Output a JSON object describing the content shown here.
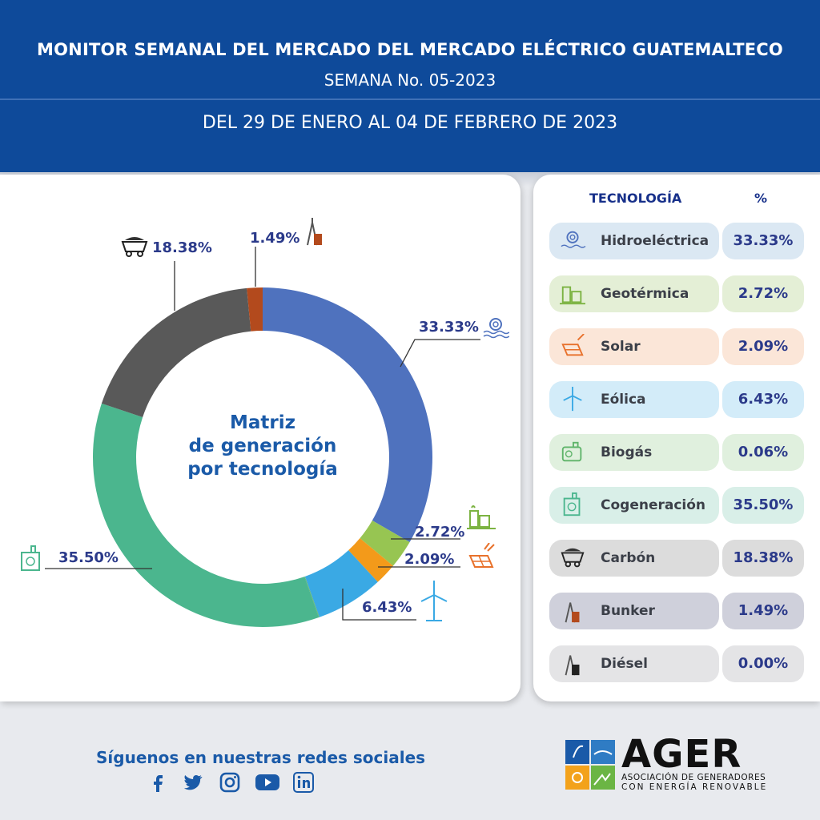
{
  "header": {
    "title": "MONITOR SEMANAL DEL MERCADO DEL MERCADO ELÉCTRICO GUATEMALTECO",
    "week": "SEMANA No. 05-2023",
    "date_range": "DEL 29 DE ENERO AL 04 DE FEBRERO DE 2023"
  },
  "chart_center_label": [
    "Matriz",
    "de generación",
    "por tecnología"
  ],
  "chart_data": {
    "type": "pie",
    "title": "Matriz de generación por tecnología",
    "categories": [
      "Hidroeléctrica",
      "Geotérmica",
      "Solar",
      "Eólica",
      "Biogás",
      "Cogeneración",
      "Carbón",
      "Bunker",
      "Diésel"
    ],
    "values": [
      33.33,
      2.72,
      2.09,
      6.43,
      0.06,
      35.5,
      18.38,
      1.49,
      0.0
    ],
    "value_labels": [
      "33.33%",
      "2.72%",
      "2.09%",
      "6.43%",
      "0.06%",
      "35.50%",
      "18.38%",
      "1.49%",
      "0.00%"
    ],
    "colors": [
      "#4f72be",
      "#97c552",
      "#f39a1a",
      "#3aa9e4",
      "#5fb46a",
      "#4bb68e",
      "#595959",
      "#b34a1d",
      "#808080"
    ],
    "donut": true
  },
  "table": {
    "header_tech": "TECNOLOGÍA",
    "header_pct": "%",
    "rows": [
      {
        "name": "Hidroeléctrica",
        "pct": "33.33%",
        "icon": "hydro-icon",
        "bg": "#dbe8f3"
      },
      {
        "name": "Geotérmica",
        "pct": "2.72%",
        "icon": "geothermal-icon",
        "bg": "#e4efd6"
      },
      {
        "name": "Solar",
        "pct": "2.09%",
        "icon": "solar-panel-icon",
        "bg": "#fbe6d8"
      },
      {
        "name": "Eólica",
        "pct": "6.43%",
        "icon": "wind-turbine-icon",
        "bg": "#d3ecf9"
      },
      {
        "name": "Biogás",
        "pct": "0.06%",
        "icon": "biogas-icon",
        "bg": "#e0f0de"
      },
      {
        "name": "Cogeneración",
        "pct": "35.50%",
        "icon": "cogeneration-icon",
        "bg": "#d9efe8"
      },
      {
        "name": "Carbón",
        "pct": "18.38%",
        "icon": "coal-cart-icon",
        "bg": "#dcdcdc"
      },
      {
        "name": "Bunker",
        "pct": "1.49%",
        "icon": "bunker-icon",
        "bg": "#cfd0db"
      },
      {
        "name": "Diésel",
        "pct": "0.00%",
        "icon": "diesel-icon",
        "bg": "#e4e4e6"
      }
    ]
  },
  "footer": {
    "follow_text": "Síguenos en nuestras redes sociales",
    "socials": [
      "facebook-icon",
      "twitter-icon",
      "instagram-icon",
      "youtube-icon",
      "linkedin-icon"
    ],
    "logo_word": "AGER",
    "logo_sub1": "ASOCIACIÓN DE GENERADORES",
    "logo_sub2": "CON ENERGÍA RENOVABLE"
  }
}
